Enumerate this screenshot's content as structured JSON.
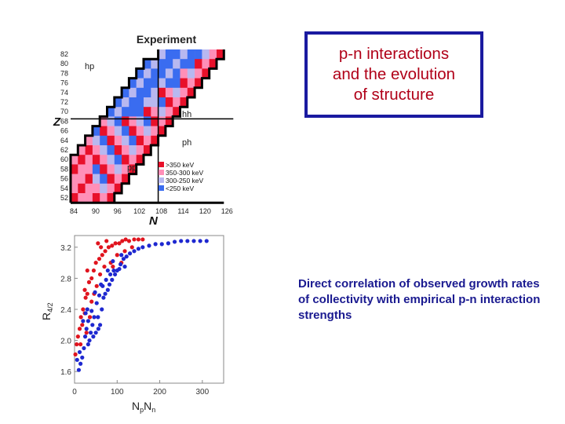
{
  "title_box": {
    "text": "p-n interactions\nand the evolution\nof structure"
  },
  "description": "Direct correlation of observed growth rates of collectivity with empirical p-n interaction strengths",
  "top_chart": {
    "title": "Experiment",
    "z_label": "Z",
    "n_label": "N",
    "z_ticks": [
      "82",
      "80",
      "78",
      "76",
      "74",
      "72",
      "70",
      "68",
      "66",
      "64",
      "62",
      "60",
      "58",
      "56",
      "54",
      "52"
    ],
    "n_ticks": [
      "84",
      "90",
      "96",
      "102",
      "108",
      "114",
      "120",
      "126"
    ],
    "region_labels": [
      "hp",
      "hh",
      "ph",
      "pp"
    ],
    "legend": [
      {
        "label": ">350 keV",
        "color": "#e8102a"
      },
      {
        "label": "350-300 keV",
        "color": "#ff8fb8"
      },
      {
        "label": "300-250 keV",
        "color": "#b8b8f0"
      },
      {
        "label": "<250 keV",
        "color": "#3a6cf0"
      }
    ]
  },
  "chart_data": {
    "type": "scatter",
    "xlabel_main": "N",
    "xlabel_sub1": "p",
    "xlabel_sub2": "n",
    "ylabel_main": "R",
    "ylabel_sub": "4/2",
    "xlim": [
      0,
      350
    ],
    "ylim": [
      1.45,
      3.35
    ],
    "x_ticks": [
      "0",
      "100",
      "200",
      "300"
    ],
    "y_ticks": [
      "1.6",
      "2.0",
      "2.4",
      "2.8",
      "3.2"
    ],
    "series": [
      {
        "color": "#e0141e",
        "points": [
          [
            2,
            1.82
          ],
          [
            5,
            1.95
          ],
          [
            8,
            2.05
          ],
          [
            12,
            2.15
          ],
          [
            15,
            2.3
          ],
          [
            18,
            2.2
          ],
          [
            20,
            2.4
          ],
          [
            24,
            2.35
          ],
          [
            26,
            2.55
          ],
          [
            30,
            2.6
          ],
          [
            34,
            2.75
          ],
          [
            40,
            2.8
          ],
          [
            45,
            2.9
          ],
          [
            50,
            3.0
          ],
          [
            58,
            3.05
          ],
          [
            65,
            3.1
          ],
          [
            72,
            3.15
          ],
          [
            80,
            3.2
          ],
          [
            88,
            3.22
          ],
          [
            96,
            3.25
          ],
          [
            105,
            3.25
          ],
          [
            112,
            3.28
          ],
          [
            120,
            3.3
          ],
          [
            128,
            3.28
          ],
          [
            140,
            3.3
          ],
          [
            150,
            3.3
          ],
          [
            160,
            3.3
          ],
          [
            40,
            2.5
          ],
          [
            52,
            2.7
          ],
          [
            60,
            2.85
          ],
          [
            70,
            2.95
          ],
          [
            85,
            3.0
          ],
          [
            100,
            3.1
          ],
          [
            118,
            3.15
          ],
          [
            135,
            3.2
          ],
          [
            55,
            3.25
          ],
          [
            62,
            3.2
          ],
          [
            75,
            3.28
          ],
          [
            24,
            2.65
          ],
          [
            30,
            2.9
          ],
          [
            46,
            2.6
          ],
          [
            90,
            2.95
          ],
          [
            110,
            3.0
          ],
          [
            28,
            2.1
          ],
          [
            36,
            2.3
          ],
          [
            14,
            1.95
          ]
        ]
      },
      {
        "color": "#1e28d0",
        "points": [
          [
            10,
            1.62
          ],
          [
            14,
            1.7
          ],
          [
            18,
            1.78
          ],
          [
            22,
            1.9
          ],
          [
            25,
            2.05
          ],
          [
            28,
            2.15
          ],
          [
            32,
            2.25
          ],
          [
            35,
            2.0
          ],
          [
            38,
            2.1
          ],
          [
            42,
            2.2
          ],
          [
            46,
            2.3
          ],
          [
            50,
            2.1
          ],
          [
            55,
            2.3
          ],
          [
            60,
            2.2
          ],
          [
            64,
            2.4
          ],
          [
            68,
            2.55
          ],
          [
            72,
            2.6
          ],
          [
            78,
            2.65
          ],
          [
            82,
            2.72
          ],
          [
            88,
            2.78
          ],
          [
            95,
            2.85
          ],
          [
            100,
            2.9
          ],
          [
            108,
            2.98
          ],
          [
            115,
            3.05
          ],
          [
            122,
            3.08
          ],
          [
            130,
            3.12
          ],
          [
            140,
            3.15
          ],
          [
            150,
            3.18
          ],
          [
            160,
            3.2
          ],
          [
            175,
            3.22
          ],
          [
            190,
            3.24
          ],
          [
            205,
            3.24
          ],
          [
            220,
            3.25
          ],
          [
            235,
            3.27
          ],
          [
            250,
            3.28
          ],
          [
            265,
            3.28
          ],
          [
            280,
            3.28
          ],
          [
            295,
            3.28
          ],
          [
            310,
            3.28
          ],
          [
            20,
            2.25
          ],
          [
            26,
            2.35
          ],
          [
            40,
            2.38
          ],
          [
            52,
            2.48
          ],
          [
            58,
            2.58
          ],
          [
            66,
            2.7
          ],
          [
            74,
            2.78
          ],
          [
            84,
            2.85
          ],
          [
            92,
            2.9
          ],
          [
            105,
            2.92
          ],
          [
            118,
            2.95
          ],
          [
            32,
            1.95
          ],
          [
            44,
            2.05
          ],
          [
            56,
            2.15
          ],
          [
            12,
            1.85
          ],
          [
            6,
            1.75
          ],
          [
            30,
            2.4
          ],
          [
            48,
            2.62
          ],
          [
            62,
            2.72
          ],
          [
            78,
            2.9
          ],
          [
            90,
            3.02
          ],
          [
            110,
            3.1
          ]
        ]
      }
    ]
  }
}
